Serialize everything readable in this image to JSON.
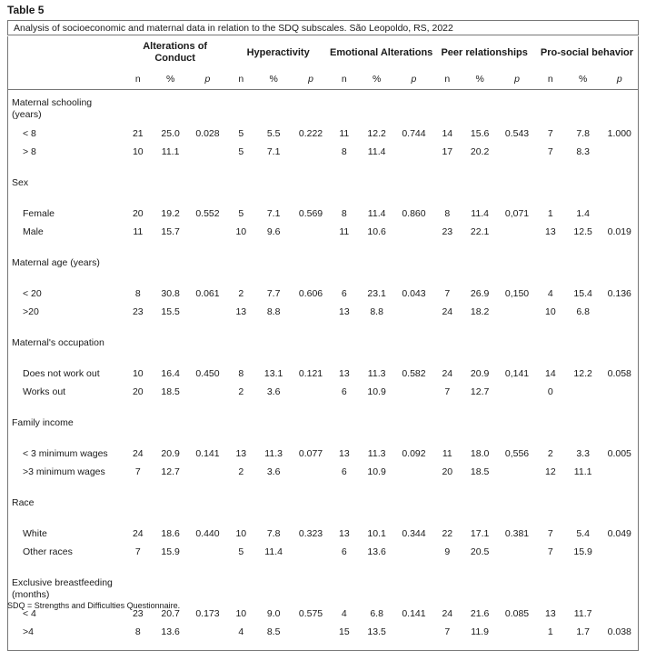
{
  "title": "Table 5",
  "caption": "Analysis of socioeconomic and maternal data in relation to the SDQ subscales. São Leopoldo, RS, 2022",
  "groups": [
    "Alterations of Conduct",
    "Hyperactivity",
    "Emotional Alterations",
    "Peer relationships",
    "Pro-social behavior"
  ],
  "sub_headers": [
    "n",
    "%",
    "p"
  ],
  "sections": [
    {
      "label": "Maternal schooling (years)",
      "rows": [
        {
          "label": "< 8",
          "values": [
            "21",
            "25.0",
            "0.028",
            "5",
            "5.5",
            "0.222",
            "11",
            "12.2",
            "0.744",
            "14",
            "15.6",
            "0.543",
            "7",
            "7.8",
            "1.000"
          ]
        },
        {
          "label": "> 8",
          "values": [
            "10",
            "11.1",
            "",
            "5",
            "7.1",
            "",
            "8",
            "11.4",
            "",
            "17",
            "20.2",
            "",
            "7",
            "8.3",
            ""
          ]
        }
      ]
    },
    {
      "label": "Sex",
      "rows": [
        {
          "label": "Female",
          "values": [
            "20",
            "19.2",
            "0.552",
            "5",
            "7.1",
            "0.569",
            "8",
            "11.4",
            "0.860",
            "8",
            "11.4",
            "0,071",
            "1",
            "1.4",
            ""
          ]
        },
        {
          "label": "Male",
          "values": [
            "11",
            "15.7",
            "",
            "10",
            "9.6",
            "",
            "11",
            "10.6",
            "",
            "23",
            "22.1",
            "",
            "13",
            "12.5",
            "0.019"
          ]
        }
      ]
    },
    {
      "label": "Maternal age (years)",
      "rows": [
        {
          "label": "< 20",
          "values": [
            "8",
            "30.8",
            "0.061",
            "2",
            "7.7",
            "0.606",
            "6",
            "23.1",
            "0.043",
            "7",
            "26.9",
            "0,150",
            "4",
            "15.4",
            "0.136"
          ]
        },
        {
          "label": ">20",
          "values": [
            "23",
            "15.5",
            "",
            "13",
            "8.8",
            "",
            "13",
            "8.8",
            "",
            "24",
            "18.2",
            "",
            "10",
            "6.8",
            ""
          ]
        }
      ]
    },
    {
      "label": "Maternal's occupation",
      "rows": [
        {
          "label": "Does not work out",
          "values": [
            "10",
            "16.4",
            "0.450",
            "8",
            "13.1",
            "0.121",
            "13",
            "11.3",
            "0.582",
            "24",
            "20.9",
            "0,141",
            "14",
            "12.2",
            "0.058"
          ]
        },
        {
          "label": "Works out",
          "values": [
            "20",
            "18.5",
            "",
            "2",
            "3.6",
            "",
            "6",
            "10.9",
            "",
            "7",
            "12.7",
            "",
            "0",
            "",
            ""
          ]
        }
      ]
    },
    {
      "label": "Family income",
      "rows": [
        {
          "label": "< 3 minimum wages",
          "values": [
            "24",
            "20.9",
            "0.141",
            "13",
            "11.3",
            "0.077",
            "13",
            "11.3",
            "0.092",
            "11",
            "18.0",
            "0,556",
            "2",
            "3.3",
            "0.005"
          ]
        },
        {
          "label": ">3 minimum wages",
          "values": [
            "7",
            "12.7",
            "",
            "2",
            "3.6",
            "",
            "6",
            "10.9",
            "",
            "20",
            "18.5",
            "",
            "12",
            "11.1",
            ""
          ]
        }
      ]
    },
    {
      "label": "Race",
      "rows": [
        {
          "label": "White",
          "values": [
            "24",
            "18.6",
            "0.440",
            "10",
            "7.8",
            "0.323",
            "13",
            "10.1",
            "0.344",
            "22",
            "17.1",
            "0.381",
            "7",
            "5.4",
            "0.049"
          ]
        },
        {
          "label": "Other races",
          "values": [
            "7",
            "15.9",
            "",
            "5",
            "11.4",
            "",
            "6",
            "13.6",
            "",
            "9",
            "20.5",
            "",
            "7",
            "15.9",
            ""
          ]
        }
      ]
    },
    {
      "label": "Exclusive breastfeeding (months)",
      "rows": [
        {
          "label": "< 4",
          "values": [
            "23",
            "20.7",
            "0.173",
            "10",
            "9.0",
            "0.575",
            "4",
            "6.8",
            "0.141",
            "24",
            "21.6",
            "0.085",
            "13",
            "11.7",
            ""
          ]
        },
        {
          "label": ">4",
          "values": [
            "8",
            "13.6",
            "",
            "4",
            "8.5",
            "",
            "15",
            "13.5",
            "",
            "7",
            "11.9",
            "",
            "1",
            "1.7",
            "0.038"
          ]
        }
      ]
    }
  ],
  "footnote": "SDQ = Strengths and Difficulties Questionnaire."
}
